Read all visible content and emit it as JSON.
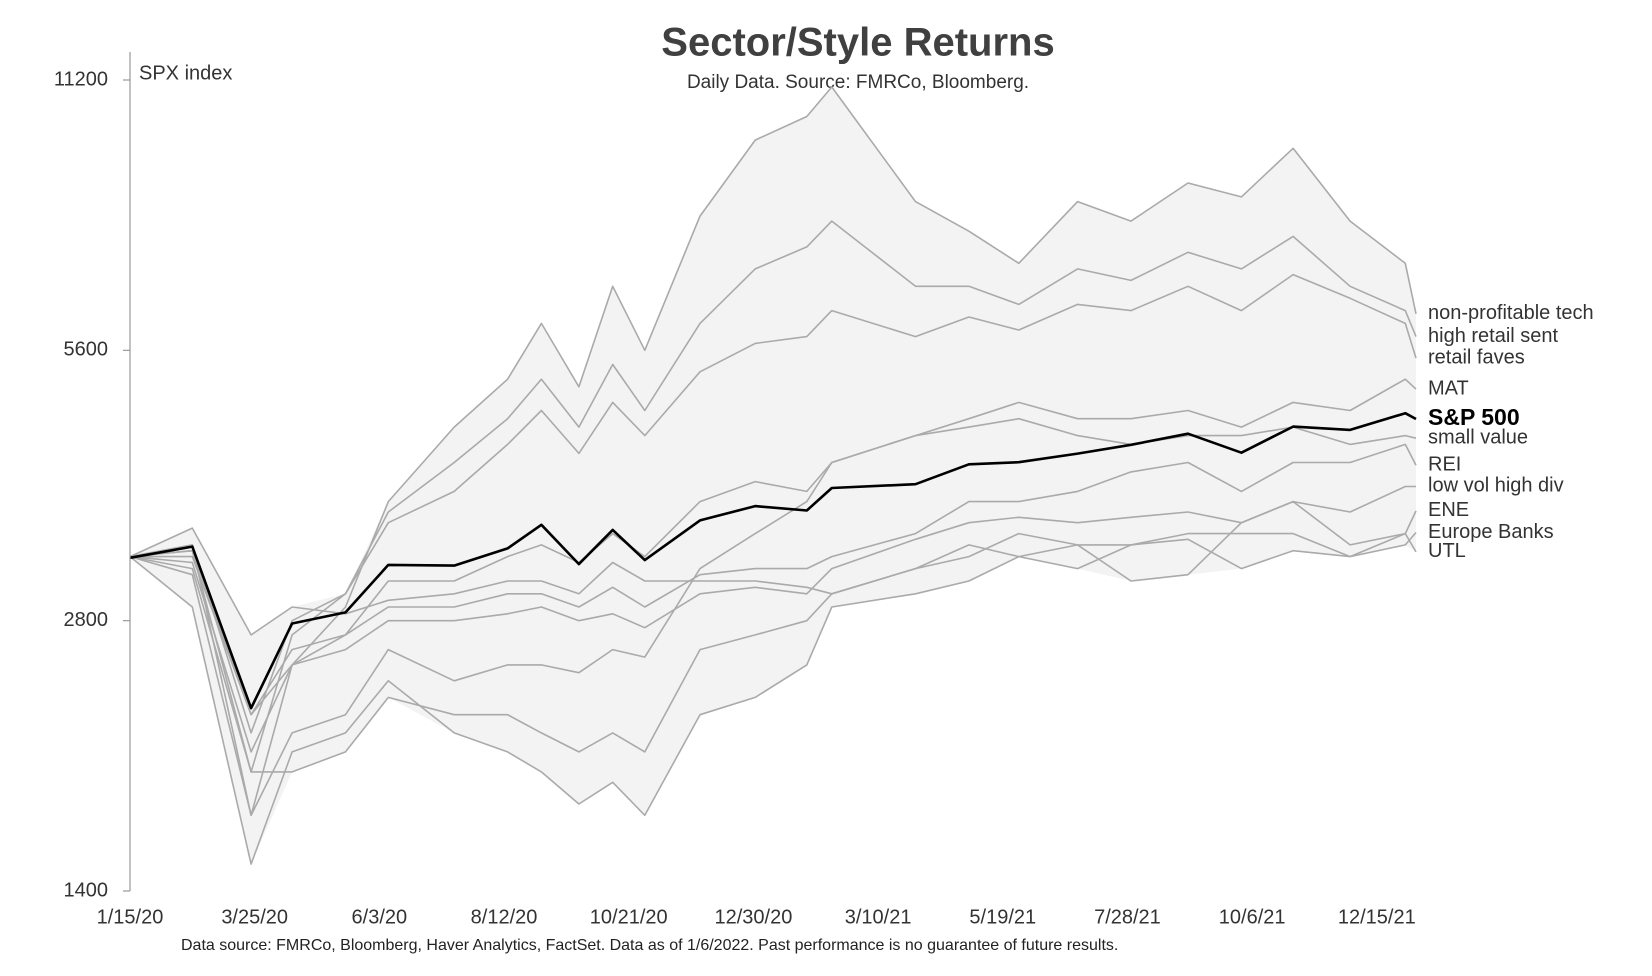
{
  "chart_data": {
    "type": "line",
    "title": "Sector/Style Returns",
    "subtitle": "Daily Data.  Source: FMRCo, Bloomberg.",
    "y_label": "SPX index",
    "footnote": "Data source: FMRCo, Bloomberg, Haver Analytics, FactSet. Data as of 1/6/2022. Past performance is no guarantee of future results.",
    "y_scale": "log",
    "ylim": [
      1400,
      11200
    ],
    "yticks": [
      1400,
      2800,
      5600,
      11200
    ],
    "xlim": [
      "1/15/20",
      "1/6/22"
    ],
    "xticks": [
      "1/15/20",
      "3/25/20",
      "6/3/20",
      "8/12/20",
      "10/21/20",
      "12/30/20",
      "3/10/21",
      "5/19/21",
      "7/28/21",
      "10/6/21",
      "12/15/21"
    ],
    "x": [
      "1/15/20",
      "2/19/20",
      "3/23/20",
      "4/15/20",
      "5/15/20",
      "6/8/20",
      "7/15/20",
      "8/14/20",
      "9/2/20",
      "9/23/20",
      "10/12/20",
      "10/30/20",
      "11/30/20",
      "12/31/20",
      "1/29/21",
      "2/12/21",
      "3/31/21",
      "4/30/21",
      "5/28/21",
      "6/30/21",
      "7/30/21",
      "8/31/21",
      "9/30/21",
      "10/29/21",
      "11/30/21",
      "12/31/21",
      "1/6/22"
    ],
    "band_color": "#f3f3f3",
    "series": [
      {
        "name": "non-profitable tech",
        "color": "#aaaaaa",
        "values": [
          3300,
          3400,
          1700,
          2500,
          2900,
          3800,
          4600,
          5200,
          6000,
          5100,
          6600,
          5600,
          7900,
          9600,
          10200,
          11000,
          8200,
          7600,
          7000,
          8200,
          7800,
          8600,
          8300,
          9400,
          7800,
          7000,
          6150
        ]
      },
      {
        "name": "high retail sent",
        "color": "#aaaaaa",
        "values": [
          3300,
          3350,
          1900,
          2700,
          3000,
          3700,
          4200,
          4700,
          5200,
          4600,
          5400,
          4800,
          6000,
          6900,
          7300,
          7800,
          6600,
          6600,
          6300,
          6900,
          6700,
          7200,
          6900,
          7500,
          6600,
          6200,
          5800
        ]
      },
      {
        "name": "retail faves",
        "color": "#aaaaaa",
        "values": [
          3300,
          3400,
          2100,
          2800,
          3000,
          3600,
          3900,
          4400,
          4800,
          4300,
          4900,
          4500,
          5300,
          5700,
          5800,
          6200,
          5800,
          6100,
          5900,
          6300,
          6200,
          6600,
          6200,
          6800,
          6400,
          6000,
          5490
        ]
      },
      {
        "name": "MAT",
        "color": "#aaaaaa",
        "values": [
          3300,
          3250,
          2000,
          2500,
          2700,
          3100,
          3100,
          3300,
          3400,
          3250,
          3500,
          3300,
          3800,
          4000,
          3900,
          4200,
          4500,
          4700,
          4900,
          4700,
          4700,
          4800,
          4600,
          4900,
          4800,
          5200,
          5070
        ]
      },
      {
        "name": "small value",
        "color": "#aaaaaa",
        "values": [
          3300,
          3150,
          1700,
          2100,
          2200,
          2600,
          2400,
          2500,
          2500,
          2450,
          2600,
          2550,
          3200,
          3500,
          3800,
          4200,
          4500,
          4600,
          4700,
          4500,
          4400,
          4500,
          4500,
          4600,
          4400,
          4500,
          4470
        ]
      },
      {
        "name": "REI",
        "color": "#aaaaaa",
        "values": [
          3300,
          3350,
          2200,
          2600,
          2700,
          2900,
          2900,
          3000,
          3000,
          2900,
          3050,
          2900,
          3150,
          3200,
          3200,
          3300,
          3500,
          3800,
          3800,
          3900,
          4100,
          4200,
          3900,
          4200,
          4200,
          4400,
          4170
        ]
      },
      {
        "name": "low vol high div",
        "color": "#aaaaaa",
        "values": [
          3300,
          3300,
          2200,
          2500,
          2600,
          2800,
          2800,
          2850,
          2900,
          2800,
          2850,
          2750,
          3000,
          3050,
          3000,
          3200,
          3450,
          3600,
          3650,
          3600,
          3650,
          3700,
          3600,
          3800,
          3700,
          3950,
          3950
        ]
      },
      {
        "name": "ENE",
        "color": "#aaaaaa",
        "values": [
          3300,
          2900,
          1500,
          2000,
          2100,
          2400,
          2100,
          2000,
          1900,
          1750,
          1850,
          1700,
          2200,
          2300,
          2500,
          2900,
          3000,
          3100,
          3300,
          3400,
          3100,
          3150,
          3600,
          3800,
          3400,
          3500,
          3710
        ]
      },
      {
        "name": "Europe Banks",
        "color": "#aaaaaa",
        "values": [
          3300,
          3200,
          1900,
          1900,
          2000,
          2300,
          2200,
          2200,
          2100,
          2000,
          2100,
          2000,
          2600,
          2700,
          2800,
          3000,
          3200,
          3300,
          3500,
          3400,
          3400,
          3500,
          3500,
          3500,
          3300,
          3400,
          3510
        ]
      },
      {
        "name": "UTL",
        "color": "#aaaaaa",
        "values": [
          3300,
          3550,
          2700,
          2900,
          2850,
          2950,
          3000,
          3100,
          3100,
          3000,
          3250,
          3100,
          3100,
          3100,
          3050,
          3000,
          3200,
          3400,
          3300,
          3200,
          3400,
          3450,
          3200,
          3350,
          3300,
          3500,
          3340
        ]
      },
      {
        "name": "S&P 500",
        "color": "#000000",
        "values": [
          3290,
          3386,
          2237,
          2780,
          2860,
          3230,
          3225,
          3370,
          3580,
          3237,
          3534,
          3270,
          3621,
          3756,
          3714,
          3934,
          3973,
          4181,
          4204,
          4297,
          4395,
          4522,
          4307,
          4605,
          4567,
          4766,
          4696
        ]
      }
    ]
  }
}
